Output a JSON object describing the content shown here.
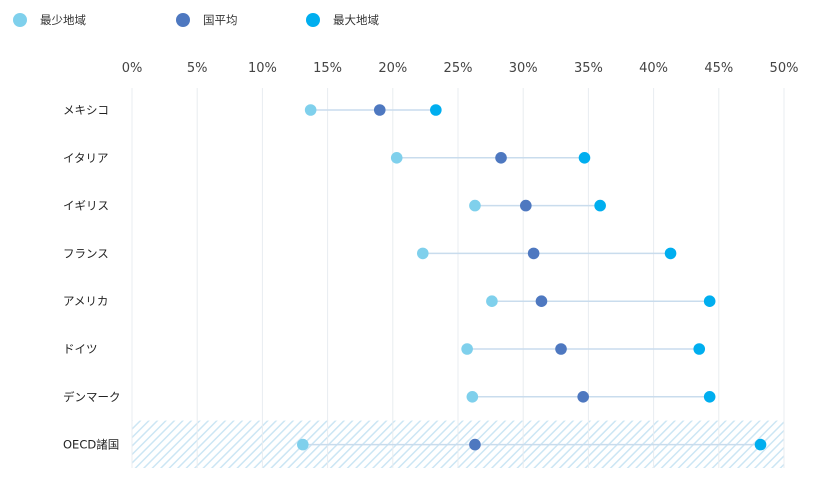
{
  "chart_data": {
    "type": "dumbbell",
    "title": "",
    "xlabel": "",
    "ylabel": "",
    "xlim": [
      0,
      50
    ],
    "x_ticks": [
      0,
      5,
      10,
      15,
      20,
      25,
      30,
      35,
      40,
      45,
      50
    ],
    "x_tick_labels": [
      "0%",
      "5%",
      "10%",
      "15%",
      "20%",
      "25%",
      "30%",
      "35%",
      "40%",
      "45%",
      "50%"
    ],
    "grid": true,
    "legend_position": "top-left",
    "categories": [
      "メキシコ",
      "イタリア",
      "イギリス",
      "フランス",
      "アメリカ",
      "ドイツ",
      "デンマーク",
      "OECD諸国"
    ],
    "highlighted_category": "OECD諸国",
    "series": [
      {
        "name": "最少地域",
        "color": "#7fd0ec",
        "values": [
          13.7,
          20.3,
          26.3,
          22.3,
          27.6,
          25.7,
          26.1,
          13.1
        ]
      },
      {
        "name": "国平均",
        "color": "#4e78c0",
        "values": [
          19.0,
          28.3,
          30.2,
          30.8,
          31.4,
          32.9,
          34.6,
          26.3
        ]
      },
      {
        "name": "最大地域",
        "color": "#00aeef",
        "values": [
          23.3,
          34.7,
          35.9,
          41.3,
          44.3,
          43.5,
          44.3,
          48.2
        ]
      }
    ],
    "colors": {
      "connector": "#c9dced",
      "grid": "#e8ecf0",
      "highlight_hatch": "#cce6f4"
    }
  }
}
